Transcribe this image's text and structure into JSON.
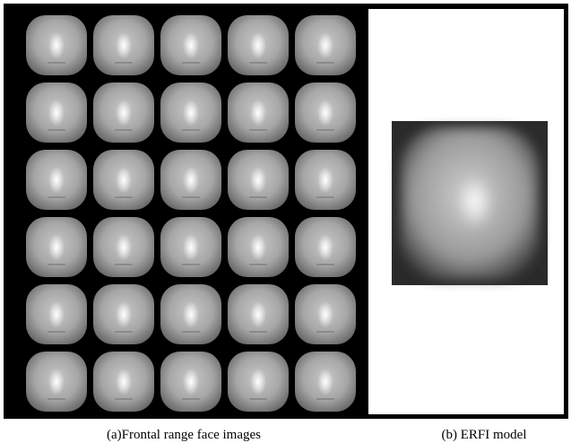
{
  "figure": {
    "captions": [
      "(a)Frontal range face images",
      "(b) ERFI model"
    ]
  }
}
